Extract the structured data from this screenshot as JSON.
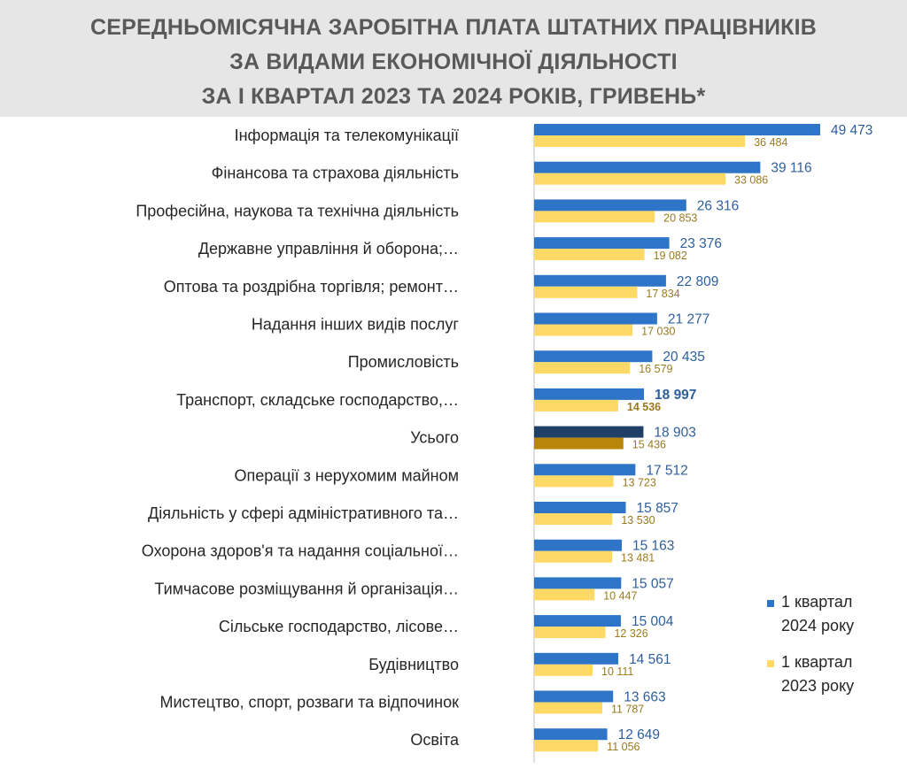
{
  "title": {
    "line1": "СЕРЕДНЬОМІСЯЧНА ЗАРОБІТНА ПЛАТА ШТАТНИХ ПРАЦІВНИКІВ",
    "line2": "ЗА ВИДАМИ ЕКОНОМІЧНОЇ ДІЯЛЬНОСТІ",
    "line3": "ЗА І КВАРТАЛ 2023 ТА 2024 РОКІВ, ГРИВЕНЬ*"
  },
  "colors": {
    "series_2024": "#2e75c8",
    "series_2023": "#ffd966",
    "total_2024": "#1f3f66",
    "total_2023": "#b8860b"
  },
  "chart_data": {
    "type": "bar",
    "orientation": "horizontal",
    "title": "СЕРЕДНЬОМІСЯЧНА ЗАРОБІТНА ПЛАТА ШТАТНИХ ПРАЦІВНИКІВ ЗА ВИДАМИ ЕКОНОМІЧНОЇ ДІЯЛЬНОСТІ ЗА І КВАРТАЛ 2023 ТА 2024 РОКІВ, ГРИВЕНЬ*",
    "categories": [
      "Інформація та телекомунікації",
      "Фінансова та страхова діяльність",
      "Професійна, наукова та технічна діяльність",
      "Державне управління й оборона;…",
      "Оптова та роздрібна торгівля; ремонт…",
      "Надання інших видів послуг",
      "Промисловість",
      "Транспорт, складське господарство,…",
      "Усього",
      "Операції з нерухомим майном",
      "Діяльність у сфері адміністративного та…",
      "Охорона здоров'я та надання соціальної…",
      "Тимчасове розміщування й організація…",
      "Сільське господарство, лісове…",
      "Будівництво",
      "Мистецтво, спорт, розваги та відпочинок",
      "Освіта"
    ],
    "series": [
      {
        "name": "1 квартал 2024 року",
        "values": [
          49473,
          39116,
          26316,
          23376,
          22809,
          21277,
          20435,
          18997,
          18903,
          17512,
          15857,
          15163,
          15057,
          15004,
          14561,
          13663,
          12649
        ],
        "labels": [
          "49 473",
          "39 116",
          "26 316",
          "23 376",
          "22 809",
          "21 277",
          "20 435",
          "18 997",
          "18 903",
          "17 512",
          "15 857",
          "15 163",
          "15 057",
          "15 004",
          "14 561",
          "13 663",
          "12 649"
        ]
      },
      {
        "name": "1 квартал 2023 року",
        "values": [
          36484,
          33086,
          20853,
          19082,
          17834,
          17030,
          16579,
          14536,
          15436,
          13723,
          13530,
          13481,
          10447,
          12326,
          10111,
          11787,
          11056
        ],
        "labels": [
          "36 484",
          "33 086",
          "20 853",
          "19 082",
          "17 834",
          "17 030",
          "16 579",
          "14 536",
          "15 436",
          "13 723",
          "13 530",
          "13 481",
          "10 447",
          "12 326",
          "10 111",
          "11 787",
          "11 056"
        ]
      }
    ],
    "highlight_category": "Усього",
    "bold_labels_category": "Транспорт, складське господарство,…",
    "legend": {
      "position": "bottom-right",
      "items": [
        {
          "line1": "1 квартал",
          "line2": "2024 року",
          "color": "#2e75c8"
        },
        {
          "line1": "1 квартал",
          "line2": "2023 року",
          "color": "#ffd966"
        }
      ]
    }
  }
}
